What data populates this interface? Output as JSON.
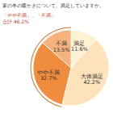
{
  "chart_data": {
    "type": "pie",
    "title": "家の冬の暖かさについて、満足していますか。",
    "categories": [
      "満足",
      "大体満足",
      "やや不満",
      "不満"
    ],
    "values": [
      11.6,
      42.2,
      32.7,
      13.5
    ],
    "value_labels": [
      "11.6%",
      "42.2%",
      "32.7%",
      "13.5%"
    ],
    "colors": [
      "#fdf2d2",
      "#fde2bb",
      "#ef8c3e",
      "#f6b27c"
    ],
    "data_labels": true,
    "annotation": {
      "lines": [
        "「やや不満」、「不満」",
        "合計"
      ],
      "value": 46.2,
      "label": "46.2%"
    }
  }
}
